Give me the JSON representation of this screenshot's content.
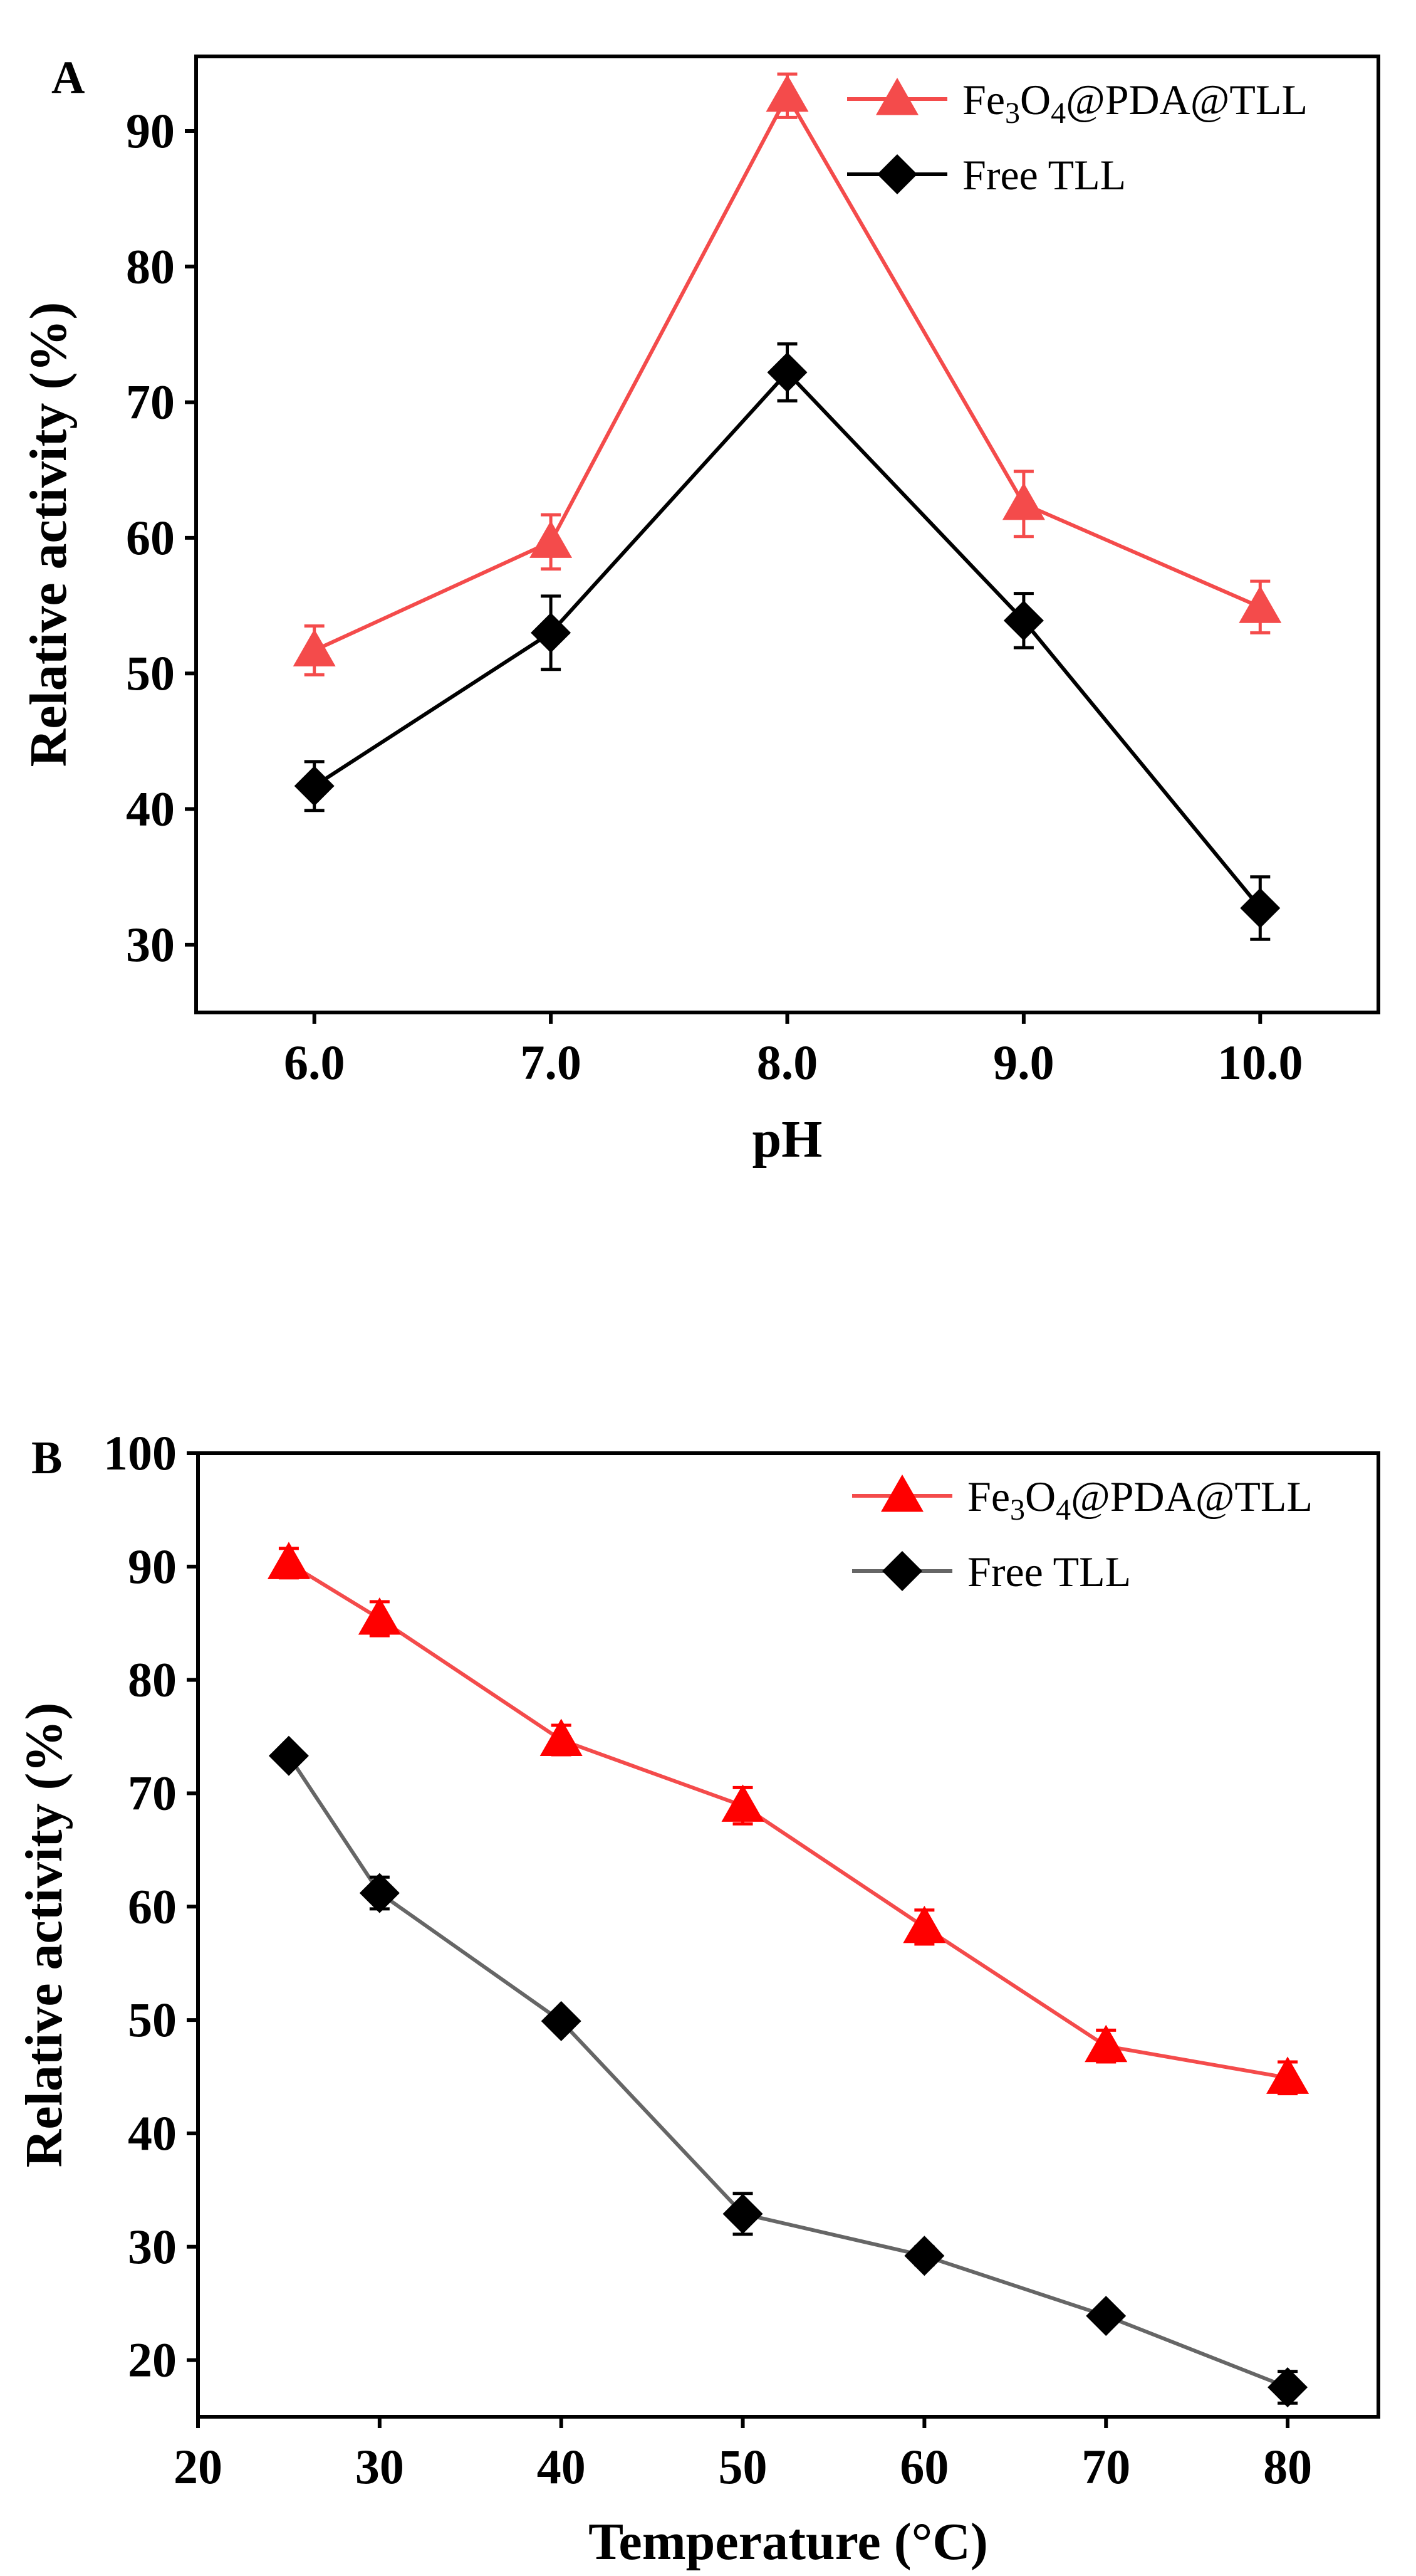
{
  "chart_data": [
    {
      "type": "line",
      "panel_label": "A",
      "xlabel": "pH",
      "ylabel": "Relative activity (%)",
      "x": [
        6.0,
        7.0,
        8.0,
        9.0,
        10.0
      ],
      "x_tick_labels": [
        "6.0",
        "7.0",
        "8.0",
        "9.0",
        "10.0"
      ],
      "xlim": [
        5.5,
        10.5
      ],
      "ylim": [
        25,
        95.5
      ],
      "y_ticks": [
        30,
        40,
        50,
        60,
        70,
        80,
        90
      ],
      "grid": false,
      "legend_position": "top-right",
      "series": [
        {
          "name": "Fe3O4@PDA@TLL",
          "marker": "triangle",
          "color": "#f44b4b",
          "values": [
            51.7,
            59.7,
            92.6,
            62.5,
            54.9
          ],
          "errors": [
            1.8,
            2.0,
            1.6,
            2.4,
            1.9
          ]
        },
        {
          "name": "Free TLL",
          "marker": "diamond",
          "color": "#000000",
          "values": [
            41.7,
            53.0,
            72.2,
            53.9,
            32.7
          ],
          "errors": [
            1.8,
            2.7,
            2.1,
            2.0,
            2.3
          ]
        }
      ]
    },
    {
      "type": "line",
      "panel_label": "B",
      "xlabel": "Temperature (°C)",
      "ylabel": "Relative activity (%)",
      "x": [
        25,
        30,
        40,
        50,
        60,
        70,
        80
      ],
      "x_ticks": [
        20,
        30,
        40,
        50,
        60,
        70,
        80
      ],
      "xlim": [
        20,
        85
      ],
      "ylim": [
        15,
        100
      ],
      "y_ticks": [
        20,
        30,
        40,
        50,
        60,
        70,
        80,
        90,
        100
      ],
      "grid": false,
      "legend_position": "top-right",
      "series": [
        {
          "name": "Fe3O4@PDA@TLL",
          "marker": "triangle",
          "color": "#ff0000",
          "line_color": "#f44b4b",
          "values": [
            90.3,
            85.4,
            74.7,
            68.9,
            58.2,
            47.7,
            44.9
          ],
          "errors": [
            1.3,
            1.5,
            1.3,
            1.6,
            1.5,
            1.4,
            1.4
          ]
        },
        {
          "name": "Free TLL",
          "marker": "diamond",
          "color": "#000000",
          "line_color": "#666666",
          "values": [
            73.3,
            61.2,
            49.9,
            32.9,
            29.2,
            23.9,
            17.6
          ],
          "errors": [
            0.6,
            1.4,
            0.6,
            1.8,
            0.8,
            0.7,
            1.4
          ]
        }
      ]
    }
  ]
}
